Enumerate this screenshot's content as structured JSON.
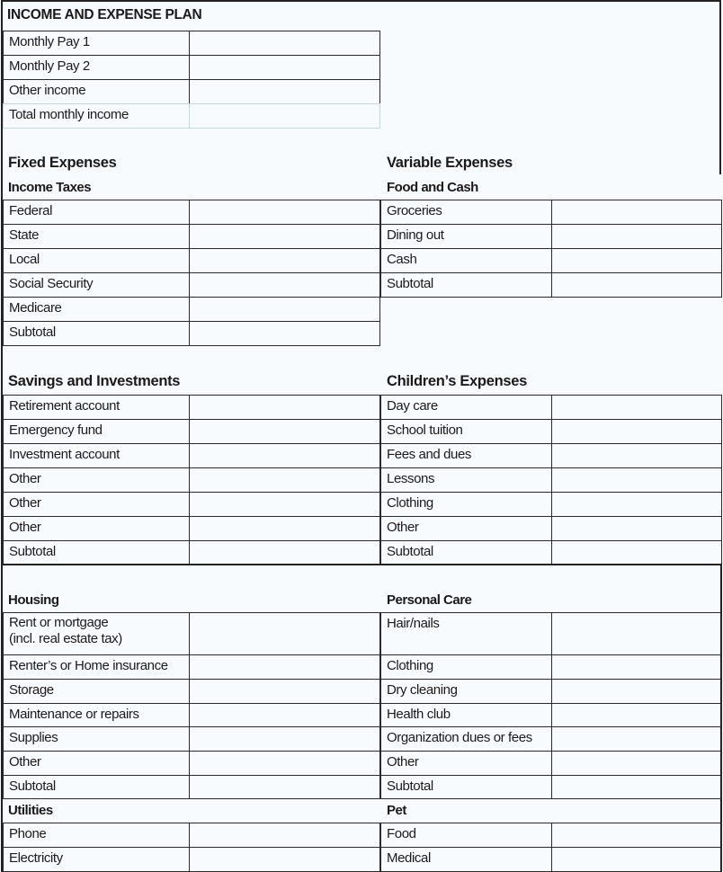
{
  "title": "INCOME AND EXPENSE PLAN",
  "income": [
    "Monthly Pay 1",
    "Monthly Pay 2",
    "Other income",
    "Total monthly income"
  ],
  "fixed_heading": "Fixed Expenses",
  "variable_heading": "Variable Expenses",
  "income_taxes": {
    "heading": "Income Taxes",
    "rows": [
      "Federal",
      "State",
      "Local",
      "Social Security",
      "Medicare",
      "Subtotal"
    ]
  },
  "food_cash": {
    "heading": "Food and Cash",
    "rows": [
      "Groceries",
      "Dining out",
      "Cash",
      "Subtotal"
    ]
  },
  "savings": {
    "heading": "Savings and Investments",
    "rows": [
      "Retirement account",
      "Emergency fund",
      "Investment account",
      "Other",
      "Other",
      "Other",
      "Subtotal"
    ]
  },
  "children": {
    "heading": "Children’s Expenses",
    "rows": [
      "Day care",
      "School tuition",
      "Fees and dues",
      "Lessons",
      "Clothing",
      "Other",
      "Subtotal"
    ]
  },
  "housing": {
    "heading": "Housing",
    "rows": [
      "Rent or mortgage",
      "Renter’s or Home insurance",
      "Storage",
      "Maintenance or repairs",
      "Supplies",
      "Other",
      "Subtotal"
    ],
    "rent_note": "(incl. real estate tax)"
  },
  "personal_care": {
    "heading": "Personal Care",
    "rows": [
      "Hair/nails",
      "Clothing",
      "Dry cleaning",
      "Health club",
      "Organization dues or fees",
      "Other",
      "Subtotal"
    ]
  },
  "utilities": {
    "heading": "Utilities",
    "rows": [
      "Phone",
      "Electricity"
    ]
  },
  "pet": {
    "heading": "Pet",
    "rows": [
      "Food",
      "Medical"
    ]
  }
}
